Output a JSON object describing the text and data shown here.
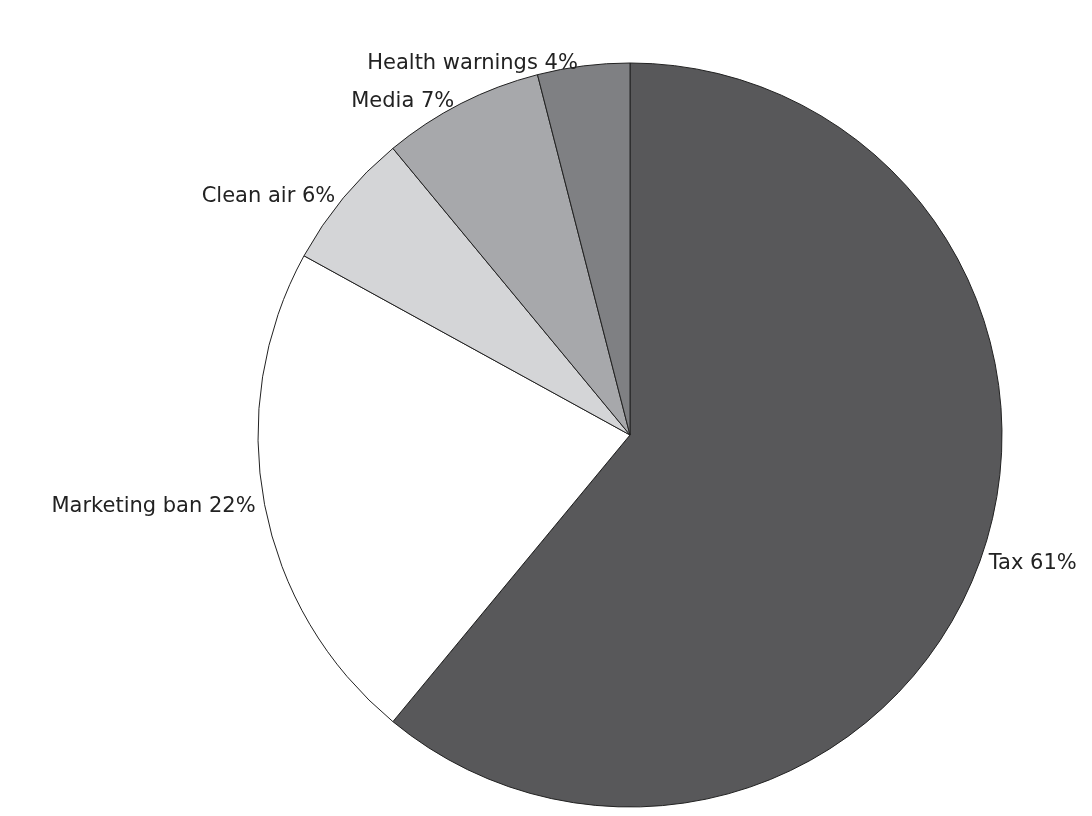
{
  "chart_data": {
    "type": "pie",
    "categories": [
      "Tax",
      "Marketing ban",
      "Clean air",
      "Media",
      "Health warnings"
    ],
    "values": [
      61,
      22,
      6,
      7,
      4
    ],
    "value_labels": [
      "61%",
      "22%",
      "6%",
      "7%",
      "4%"
    ],
    "colors": [
      "#58585a",
      "#ffffff",
      "#d4d5d7",
      "#a7a8ab",
      "#7f8083"
    ],
    "legend": false
  }
}
